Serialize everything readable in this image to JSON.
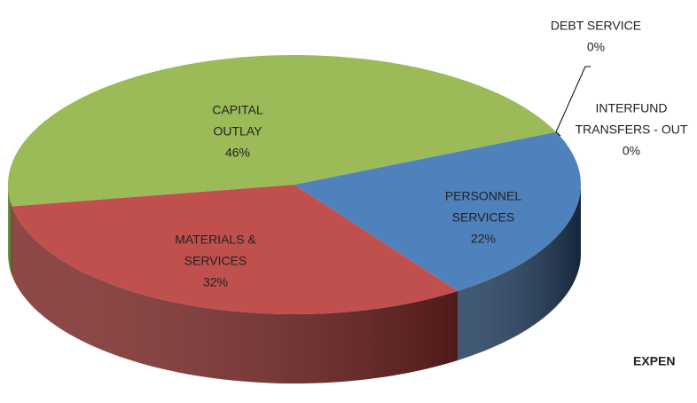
{
  "chart_data": {
    "type": "pie",
    "title": "EXPEN",
    "categories": [
      [
        "PERSONNEL",
        "SERVICES"
      ],
      [
        "MATERIALS &",
        "SERVICES"
      ],
      [
        "CAPITAL",
        "OUTLAY"
      ],
      [
        "DEBT SERVICE"
      ],
      [
        "INTERFUND",
        "TRANSFERS - OUT"
      ]
    ],
    "values": [
      22,
      32,
      46,
      0,
      0
    ],
    "value_labels": [
      "22%",
      "32%",
      "46%",
      "0%",
      "0%"
    ],
    "colors": [
      "#4f81bd",
      "#c0504d",
      "#9bbb59",
      "#8064a2",
      "#4bacc6"
    ],
    "side_colors": [
      "#1f3b5c",
      "#7a2826",
      "#5e7a2e",
      "#4d3a66",
      "#2c7289"
    ]
  }
}
